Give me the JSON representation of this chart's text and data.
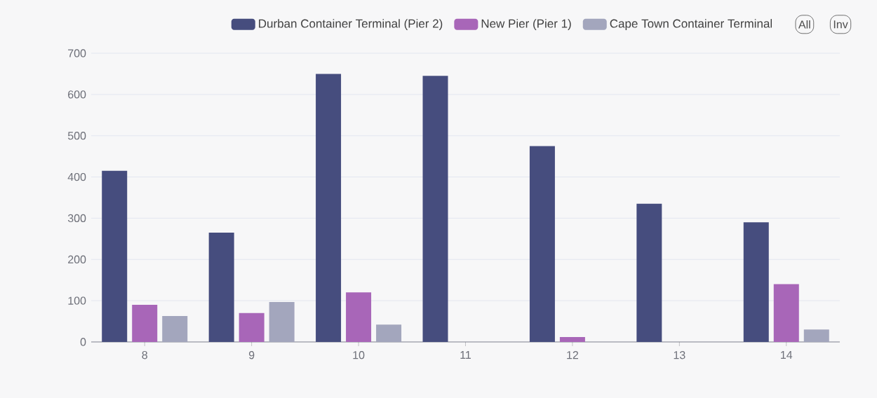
{
  "chart_data": {
    "type": "bar",
    "categories": [
      "8",
      "9",
      "10",
      "11",
      "12",
      "13",
      "14"
    ],
    "series": [
      {
        "name": "Durban Container Terminal (Pier 2)",
        "color": "#464d7e",
        "values": [
          415,
          265,
          650,
          645,
          475,
          335,
          290
        ]
      },
      {
        "name": "New Pier (Pier 1)",
        "color": "#a866b8",
        "values": [
          90,
          70,
          120,
          0,
          12,
          0,
          140
        ]
      },
      {
        "name": "Cape Town Container Terminal",
        "color": "#a3a6bd",
        "values": [
          63,
          97,
          42,
          0,
          0,
          0,
          30
        ]
      }
    ],
    "ylim": [
      0,
      700
    ],
    "yticks": [
      0,
      100,
      200,
      300,
      400,
      500,
      600,
      700
    ],
    "grid": "y",
    "legend": "top right",
    "annotations": [
      "All",
      "Inv"
    ]
  }
}
